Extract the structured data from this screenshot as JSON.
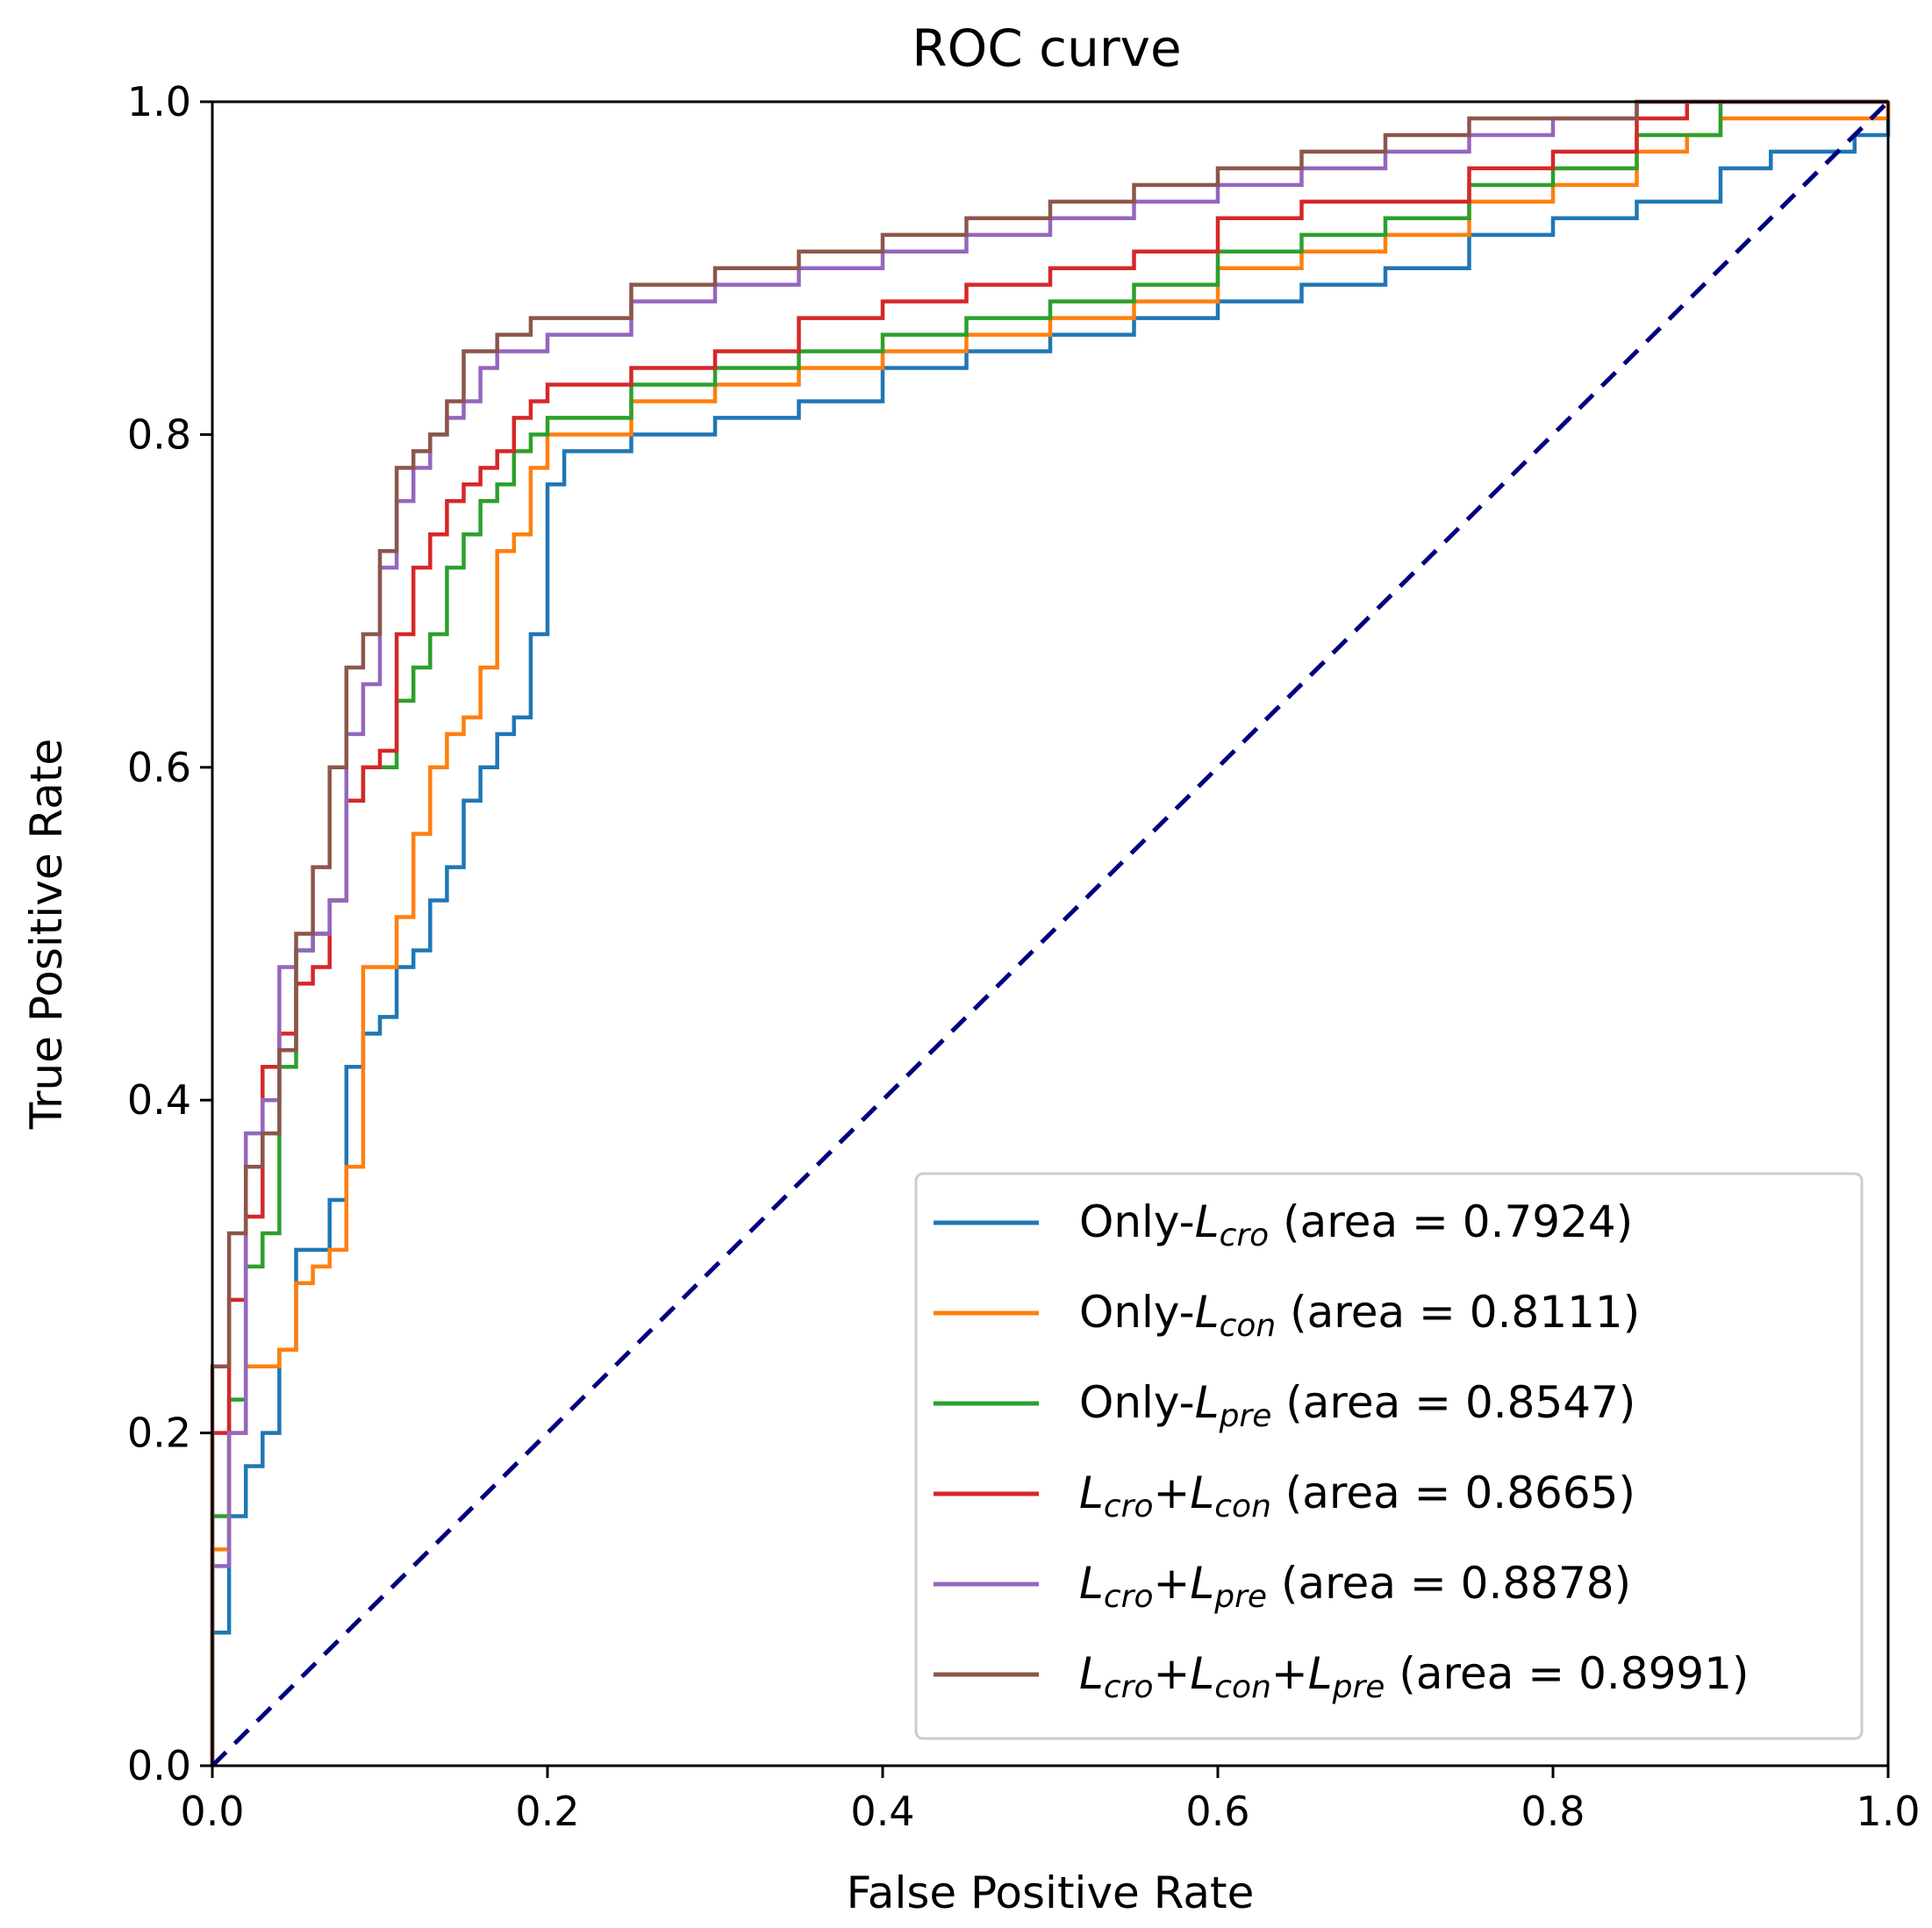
{
  "chart_data": {
    "type": "line",
    "title": "ROC curve",
    "xlabel": "False Positive Rate",
    "ylabel": "True Positive Rate",
    "xlim": [
      0.0,
      1.0
    ],
    "ylim": [
      0.0,
      1.0
    ],
    "xticks": [
      "0.0",
      "0.2",
      "0.4",
      "0.6",
      "0.8",
      "1.0"
    ],
    "yticks": [
      "0.0",
      "0.2",
      "0.4",
      "0.6",
      "0.8",
      "1.0"
    ],
    "grid": false,
    "legend_position": "lower-right",
    "legend_tokens": {
      "L": "L",
      "only": "Only-",
      "plus": "+",
      "area_prefix": "(area = ",
      "area_suffix": ")"
    },
    "series": [
      {
        "name": "Only-L_cro",
        "label_parts": [
          {
            "t": "Only-"
          },
          {
            "t": "L",
            "i": true
          },
          {
            "t": "cro",
            "sub": true
          }
        ],
        "area": "0.7924",
        "color": "#1f77b4",
        "x": [
          0.0,
          0.0,
          0.01,
          0.01,
          0.02,
          0.02,
          0.03,
          0.04,
          0.04,
          0.05,
          0.05,
          0.06,
          0.07,
          0.07,
          0.08,
          0.08,
          0.09,
          0.1,
          0.11,
          0.12,
          0.13,
          0.13,
          0.14,
          0.15,
          0.15,
          0.16,
          0.17,
          0.18,
          0.19,
          0.19,
          0.2,
          0.2,
          0.21,
          0.25,
          0.3,
          0.35,
          0.4,
          0.45,
          0.5,
          0.55,
          0.6,
          0.65,
          0.7,
          0.75,
          0.8,
          0.85,
          0.9,
          0.93,
          0.96,
          0.98,
          1.0
        ],
        "y": [
          0.0,
          0.08,
          0.1,
          0.15,
          0.17,
          0.18,
          0.2,
          0.22,
          0.25,
          0.27,
          0.31,
          0.31,
          0.32,
          0.34,
          0.36,
          0.42,
          0.44,
          0.45,
          0.48,
          0.49,
          0.5,
          0.52,
          0.54,
          0.55,
          0.58,
          0.6,
          0.62,
          0.63,
          0.63,
          0.68,
          0.72,
          0.77,
          0.79,
          0.8,
          0.81,
          0.82,
          0.84,
          0.85,
          0.86,
          0.87,
          0.88,
          0.89,
          0.9,
          0.92,
          0.93,
          0.94,
          0.96,
          0.97,
          0.97,
          0.98,
          1.0
        ]
      },
      {
        "name": "Only-L_con",
        "label_parts": [
          {
            "t": "Only-"
          },
          {
            "t": "L",
            "i": true
          },
          {
            "t": "con",
            "sub": true
          }
        ],
        "area": "0.8111",
        "color": "#ff7f0e",
        "x": [
          0.0,
          0.0,
          0.01,
          0.01,
          0.02,
          0.03,
          0.04,
          0.05,
          0.05,
          0.06,
          0.07,
          0.08,
          0.08,
          0.09,
          0.09,
          0.1,
          0.11,
          0.11,
          0.12,
          0.12,
          0.13,
          0.13,
          0.14,
          0.14,
          0.15,
          0.16,
          0.17,
          0.17,
          0.18,
          0.18,
          0.19,
          0.19,
          0.2,
          0.25,
          0.3,
          0.35,
          0.4,
          0.45,
          0.5,
          0.55,
          0.6,
          0.65,
          0.7,
          0.75,
          0.8,
          0.85,
          0.88,
          0.9,
          1.0
        ],
        "y": [
          0.0,
          0.13,
          0.17,
          0.2,
          0.24,
          0.24,
          0.25,
          0.28,
          0.29,
          0.3,
          0.31,
          0.33,
          0.36,
          0.44,
          0.48,
          0.48,
          0.49,
          0.51,
          0.55,
          0.56,
          0.58,
          0.6,
          0.61,
          0.62,
          0.63,
          0.66,
          0.72,
          0.73,
          0.74,
          0.74,
          0.77,
          0.78,
          0.8,
          0.82,
          0.83,
          0.84,
          0.85,
          0.86,
          0.87,
          0.88,
          0.9,
          0.91,
          0.92,
          0.94,
          0.95,
          0.97,
          0.98,
          0.99,
          1.0
        ]
      },
      {
        "name": "Only-L_pre",
        "label_parts": [
          {
            "t": "Only-"
          },
          {
            "t": "L",
            "i": true
          },
          {
            "t": "pre",
            "sub": true
          }
        ],
        "area": "0.8547",
        "color": "#2ca02c",
        "x": [
          0.0,
          0.0,
          0.01,
          0.01,
          0.02,
          0.03,
          0.04,
          0.04,
          0.05,
          0.05,
          0.06,
          0.07,
          0.08,
          0.08,
          0.09,
          0.1,
          0.11,
          0.11,
          0.12,
          0.12,
          0.13,
          0.14,
          0.14,
          0.15,
          0.16,
          0.17,
          0.18,
          0.19,
          0.2,
          0.25,
          0.3,
          0.35,
          0.4,
          0.45,
          0.5,
          0.55,
          0.6,
          0.65,
          0.7,
          0.75,
          0.8,
          0.85,
          0.9,
          1.0
        ],
        "y": [
          0.0,
          0.15,
          0.18,
          0.22,
          0.3,
          0.32,
          0.33,
          0.42,
          0.48,
          0.49,
          0.5,
          0.52,
          0.55,
          0.58,
          0.6,
          0.6,
          0.62,
          0.64,
          0.66,
          0.66,
          0.68,
          0.7,
          0.72,
          0.74,
          0.76,
          0.77,
          0.79,
          0.8,
          0.81,
          0.83,
          0.84,
          0.85,
          0.86,
          0.87,
          0.88,
          0.89,
          0.91,
          0.92,
          0.93,
          0.95,
          0.96,
          0.98,
          1.0,
          1.0
        ]
      },
      {
        "name": "L_cro+L_con",
        "label_parts": [
          {
            "t": "L",
            "i": true
          },
          {
            "t": "cro",
            "sub": true
          },
          {
            "t": "+"
          },
          {
            "t": "L",
            "i": true
          },
          {
            "t": "con",
            "sub": true
          }
        ],
        "area": "0.8665",
        "color": "#d62728",
        "x": [
          0.0,
          0.0,
          0.01,
          0.01,
          0.02,
          0.02,
          0.03,
          0.03,
          0.04,
          0.05,
          0.05,
          0.06,
          0.07,
          0.08,
          0.08,
          0.09,
          0.09,
          0.1,
          0.11,
          0.11,
          0.12,
          0.12,
          0.13,
          0.14,
          0.14,
          0.15,
          0.16,
          0.17,
          0.18,
          0.18,
          0.19,
          0.2,
          0.25,
          0.3,
          0.35,
          0.4,
          0.45,
          0.5,
          0.55,
          0.6,
          0.65,
          0.7,
          0.75,
          0.8,
          0.85,
          0.88,
          1.0
        ],
        "y": [
          0.0,
          0.2,
          0.25,
          0.28,
          0.31,
          0.33,
          0.38,
          0.42,
          0.44,
          0.46,
          0.47,
          0.48,
          0.52,
          0.56,
          0.58,
          0.6,
          0.6,
          0.61,
          0.63,
          0.68,
          0.7,
          0.72,
          0.74,
          0.75,
          0.76,
          0.77,
          0.78,
          0.79,
          0.8,
          0.81,
          0.82,
          0.83,
          0.84,
          0.85,
          0.87,
          0.88,
          0.89,
          0.9,
          0.91,
          0.93,
          0.94,
          0.94,
          0.96,
          0.97,
          0.99,
          1.0,
          1.0
        ]
      },
      {
        "name": "L_cro+L_pre",
        "label_parts": [
          {
            "t": "L",
            "i": true
          },
          {
            "t": "cro",
            "sub": true
          },
          {
            "t": "+"
          },
          {
            "t": "L",
            "i": true
          },
          {
            "t": "pre",
            "sub": true
          }
        ],
        "area": "0.8878",
        "color": "#9467bd",
        "x": [
          0.0,
          0.0,
          0.01,
          0.01,
          0.02,
          0.02,
          0.03,
          0.03,
          0.04,
          0.04,
          0.05,
          0.05,
          0.06,
          0.07,
          0.08,
          0.08,
          0.09,
          0.1,
          0.1,
          0.11,
          0.11,
          0.12,
          0.13,
          0.13,
          0.14,
          0.15,
          0.16,
          0.17,
          0.18,
          0.2,
          0.25,
          0.3,
          0.35,
          0.4,
          0.45,
          0.5,
          0.55,
          0.6,
          0.65,
          0.7,
          0.75,
          0.8,
          0.85,
          0.87,
          1.0
        ],
        "y": [
          0.0,
          0.12,
          0.15,
          0.2,
          0.3,
          0.38,
          0.4,
          0.4,
          0.42,
          0.48,
          0.49,
          0.49,
          0.5,
          0.52,
          0.55,
          0.62,
          0.65,
          0.68,
          0.72,
          0.74,
          0.76,
          0.78,
          0.79,
          0.8,
          0.81,
          0.82,
          0.84,
          0.85,
          0.85,
          0.86,
          0.88,
          0.89,
          0.9,
          0.91,
          0.92,
          0.93,
          0.94,
          0.95,
          0.96,
          0.97,
          0.98,
          0.99,
          1.0,
          1.0,
          1.0
        ]
      },
      {
        "name": "L_cro+L_con+L_pre",
        "label_parts": [
          {
            "t": "L",
            "i": true
          },
          {
            "t": "cro",
            "sub": true
          },
          {
            "t": "+"
          },
          {
            "t": "L",
            "i": true
          },
          {
            "t": "con",
            "sub": true
          },
          {
            "t": "+"
          },
          {
            "t": "L",
            "i": true
          },
          {
            "t": "pre",
            "sub": true
          }
        ],
        "area": "0.8991",
        "color": "#8c564b",
        "x": [
          0.0,
          0.0,
          0.01,
          0.01,
          0.02,
          0.02,
          0.03,
          0.03,
          0.04,
          0.04,
          0.05,
          0.05,
          0.06,
          0.06,
          0.07,
          0.07,
          0.08,
          0.08,
          0.09,
          0.1,
          0.1,
          0.11,
          0.11,
          0.12,
          0.13,
          0.14,
          0.15,
          0.15,
          0.17,
          0.19,
          0.2,
          0.25,
          0.3,
          0.35,
          0.4,
          0.45,
          0.5,
          0.55,
          0.6,
          0.65,
          0.7,
          0.75,
          0.8,
          0.85,
          1.0
        ],
        "y": [
          0.0,
          0.24,
          0.31,
          0.32,
          0.33,
          0.36,
          0.38,
          0.38,
          0.39,
          0.43,
          0.48,
          0.5,
          0.52,
          0.54,
          0.56,
          0.6,
          0.6,
          0.66,
          0.68,
          0.72,
          0.73,
          0.76,
          0.78,
          0.79,
          0.8,
          0.82,
          0.84,
          0.85,
          0.86,
          0.87,
          0.87,
          0.89,
          0.9,
          0.91,
          0.92,
          0.93,
          0.94,
          0.95,
          0.96,
          0.97,
          0.98,
          0.99,
          0.99,
          1.0,
          1.0
        ]
      }
    ],
    "reference_line": {
      "x": [
        0.0,
        1.0
      ],
      "y": [
        0.0,
        1.0
      ],
      "color": "#000080",
      "style": "dashed"
    }
  }
}
